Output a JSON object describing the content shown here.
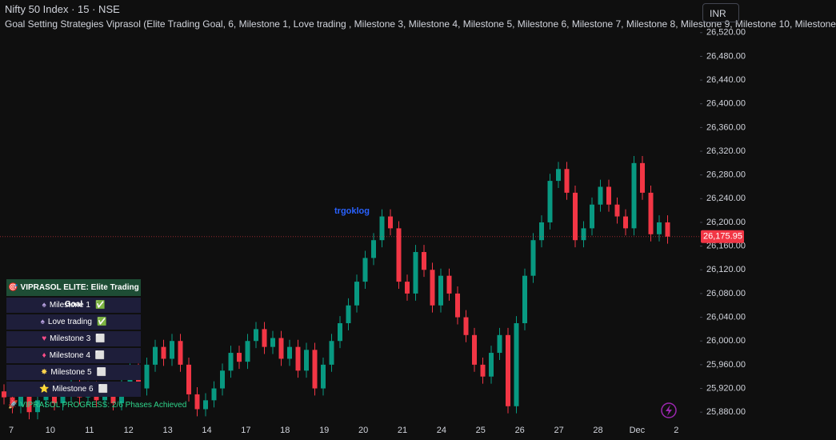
{
  "header": {
    "title": "Nifty 50 Index · 15 · NSE",
    "indicator": "Goal Setting Strategies Viprasol (Elite Trading Goal, 6, Milestone 1, Love trading , Milestone 3, Milestone 4, Milestone 5, Milestone 6, Milestone 7, Milestone 8, Milestone 9, Milestone 10, Milestone"
  },
  "currency_button": "INR",
  "annotation": "trgoklog",
  "panel": {
    "title": "🎯 VIPRASOL ELITE: Elite Trading Goal",
    "rows": [
      {
        "icon": "♠",
        "label": "Milestone 1",
        "status": "✅"
      },
      {
        "icon": "♠",
        "label": "Love trading",
        "status": "✅"
      },
      {
        "icon": "♥",
        "label": "Milestone 3",
        "status": "⬜"
      },
      {
        "icon": "♦",
        "label": "Milestone 4",
        "status": "⬜"
      },
      {
        "icon": "✸",
        "label": "Milestone 5",
        "status": "⬜"
      },
      {
        "icon": "⭐",
        "label": "Milestone 6",
        "status": "⬜"
      }
    ],
    "progress": "🚀 VIPRASOL PROGRESS: 2/6 Phases Achieved"
  },
  "chart_data": {
    "type": "candlestick",
    "up_color": "#089981",
    "down_color": "#f23645",
    "categories": [
      "7",
      "10",
      "11",
      "12",
      "13",
      "14",
      "17",
      "18",
      "19",
      "20",
      "21",
      "24",
      "25",
      "26",
      "27",
      "28",
      "Dec",
      "2"
    ],
    "last_price": {
      "value": 26175.95,
      "label": "26,175.95"
    },
    "ylim": [
      25860,
      26575
    ],
    "yticks": [
      {
        "value": 25880,
        "label": "25,880.00"
      },
      {
        "value": 25920,
        "label": "25,920.00"
      },
      {
        "value": 25960,
        "label": "25,960.00"
      },
      {
        "value": 26000,
        "label": "26,000.00"
      },
      {
        "value": 26040,
        "label": "26,040.00"
      },
      {
        "value": 26080,
        "label": "26,080.00"
      },
      {
        "value": 26120,
        "label": "26,120.00"
      },
      {
        "value": 26160,
        "label": "26,160.00"
      },
      {
        "value": 26200,
        "label": "26,200.00"
      },
      {
        "value": 26240,
        "label": "26,240.00"
      },
      {
        "value": 26280,
        "label": "26,280.00"
      },
      {
        "value": 26320,
        "label": "26,320.00"
      },
      {
        "value": 26360,
        "label": "26,360.00"
      },
      {
        "value": 26400,
        "label": "26,400.00"
      },
      {
        "value": 26440,
        "label": "26,440.00"
      },
      {
        "value": 26480,
        "label": "26,480.00"
      },
      {
        "value": 26520,
        "label": "26,520.00"
      }
    ],
    "candles": [
      [
        25915,
        25927,
        25893,
        25905
      ],
      [
        25905,
        25917,
        25878,
        25890
      ],
      [
        25890,
        25922,
        25878,
        25910
      ],
      [
        25910,
        25922,
        25868,
        25880
      ],
      [
        25880,
        25912,
        25868,
        25900
      ],
      [
        25900,
        25932,
        25888,
        25920
      ],
      [
        25920,
        25932,
        25883,
        25895
      ],
      [
        25895,
        25922,
        25883,
        25910
      ],
      [
        25910,
        25942,
        25898,
        25930
      ],
      [
        25930,
        25942,
        25893,
        25905
      ],
      [
        25905,
        25932,
        25893,
        25920
      ],
      [
        25920,
        25932,
        25888,
        25900
      ],
      [
        25900,
        25927,
        25888,
        25915
      ],
      [
        25915,
        25927,
        25883,
        25895
      ],
      [
        25895,
        25937,
        25883,
        25925
      ],
      [
        25925,
        25962,
        25913,
        25950
      ],
      [
        25950,
        25962,
        25908,
        25920
      ],
      [
        25920,
        25972,
        25908,
        25960
      ],
      [
        25960,
        26002,
        25948,
        25990
      ],
      [
        25990,
        26002,
        25958,
        25970
      ],
      [
        25970,
        26012,
        25958,
        26000
      ],
      [
        26000,
        26012,
        25948,
        25960
      ],
      [
        25960,
        25972,
        25898,
        25910
      ],
      [
        25910,
        25922,
        25873,
        25885
      ],
      [
        25885,
        25912,
        25873,
        25900
      ],
      [
        25900,
        25932,
        25888,
        25920
      ],
      [
        25920,
        25962,
        25908,
        25950
      ],
      [
        25950,
        25992,
        25938,
        25980
      ],
      [
        25980,
        25992,
        25953,
        25965
      ],
      [
        25965,
        26012,
        25953,
        26000
      ],
      [
        26000,
        26032,
        25988,
        26020
      ],
      [
        26020,
        26032,
        25978,
        25990
      ],
      [
        25990,
        26017,
        25978,
        26005
      ],
      [
        26005,
        26017,
        25958,
        25970
      ],
      [
        25970,
        26002,
        25958,
        25990
      ],
      [
        25990,
        26002,
        25938,
        25950
      ],
      [
        25950,
        25997,
        25938,
        25985
      ],
      [
        25985,
        25997,
        25908,
        25920
      ],
      [
        25920,
        25972,
        25908,
        25960
      ],
      [
        25960,
        26012,
        25948,
        26000
      ],
      [
        26000,
        26042,
        25988,
        26030
      ],
      [
        26030,
        26072,
        26018,
        26060
      ],
      [
        26060,
        26112,
        26048,
        26100
      ],
      [
        26100,
        26152,
        26088,
        26140
      ],
      [
        26140,
        26182,
        26128,
        26170
      ],
      [
        26170,
        26222,
        26158,
        26210
      ],
      [
        26210,
        26222,
        26178,
        26190
      ],
      [
        26190,
        26202,
        26088,
        26100
      ],
      [
        26100,
        26112,
        26068,
        26080
      ],
      [
        26080,
        26162,
        26068,
        26150
      ],
      [
        26150,
        26162,
        26108,
        26120
      ],
      [
        26120,
        26132,
        26048,
        26060
      ],
      [
        26060,
        26122,
        26048,
        26110
      ],
      [
        26110,
        26122,
        26068,
        26080
      ],
      [
        26080,
        26092,
        26028,
        26040
      ],
      [
        26040,
        26052,
        25998,
        26010
      ],
      [
        26010,
        26022,
        25948,
        25960
      ],
      [
        25960,
        25972,
        25928,
        25940
      ],
      [
        25940,
        25992,
        25928,
        25980
      ],
      [
        25980,
        26022,
        25968,
        26010
      ],
      [
        26010,
        26022,
        25878,
        25890
      ],
      [
        25890,
        26042,
        25878,
        26030
      ],
      [
        26030,
        26122,
        26018,
        26110
      ],
      [
        26110,
        26182,
        26098,
        26170
      ],
      [
        26170,
        26212,
        26158,
        26200
      ],
      [
        26200,
        26282,
        26188,
        26270
      ],
      [
        26270,
        26302,
        26258,
        26290
      ],
      [
        26290,
        26302,
        26238,
        26250
      ],
      [
        26250,
        26262,
        26158,
        26170
      ],
      [
        26170,
        26202,
        26158,
        26190
      ],
      [
        26190,
        26242,
        26178,
        26230
      ],
      [
        26230,
        26272,
        26218,
        26260
      ],
      [
        26260,
        26272,
        26218,
        26230
      ],
      [
        26230,
        26242,
        26198,
        26210
      ],
      [
        26210,
        26222,
        26178,
        26190
      ],
      [
        26190,
        26312,
        26178,
        26300
      ],
      [
        26300,
        26312,
        26238,
        26250
      ],
      [
        26250,
        26262,
        26168,
        26180
      ],
      [
        26180,
        26212,
        26168,
        26200
      ],
      [
        26200,
        26212,
        26164,
        26176
      ]
    ]
  }
}
